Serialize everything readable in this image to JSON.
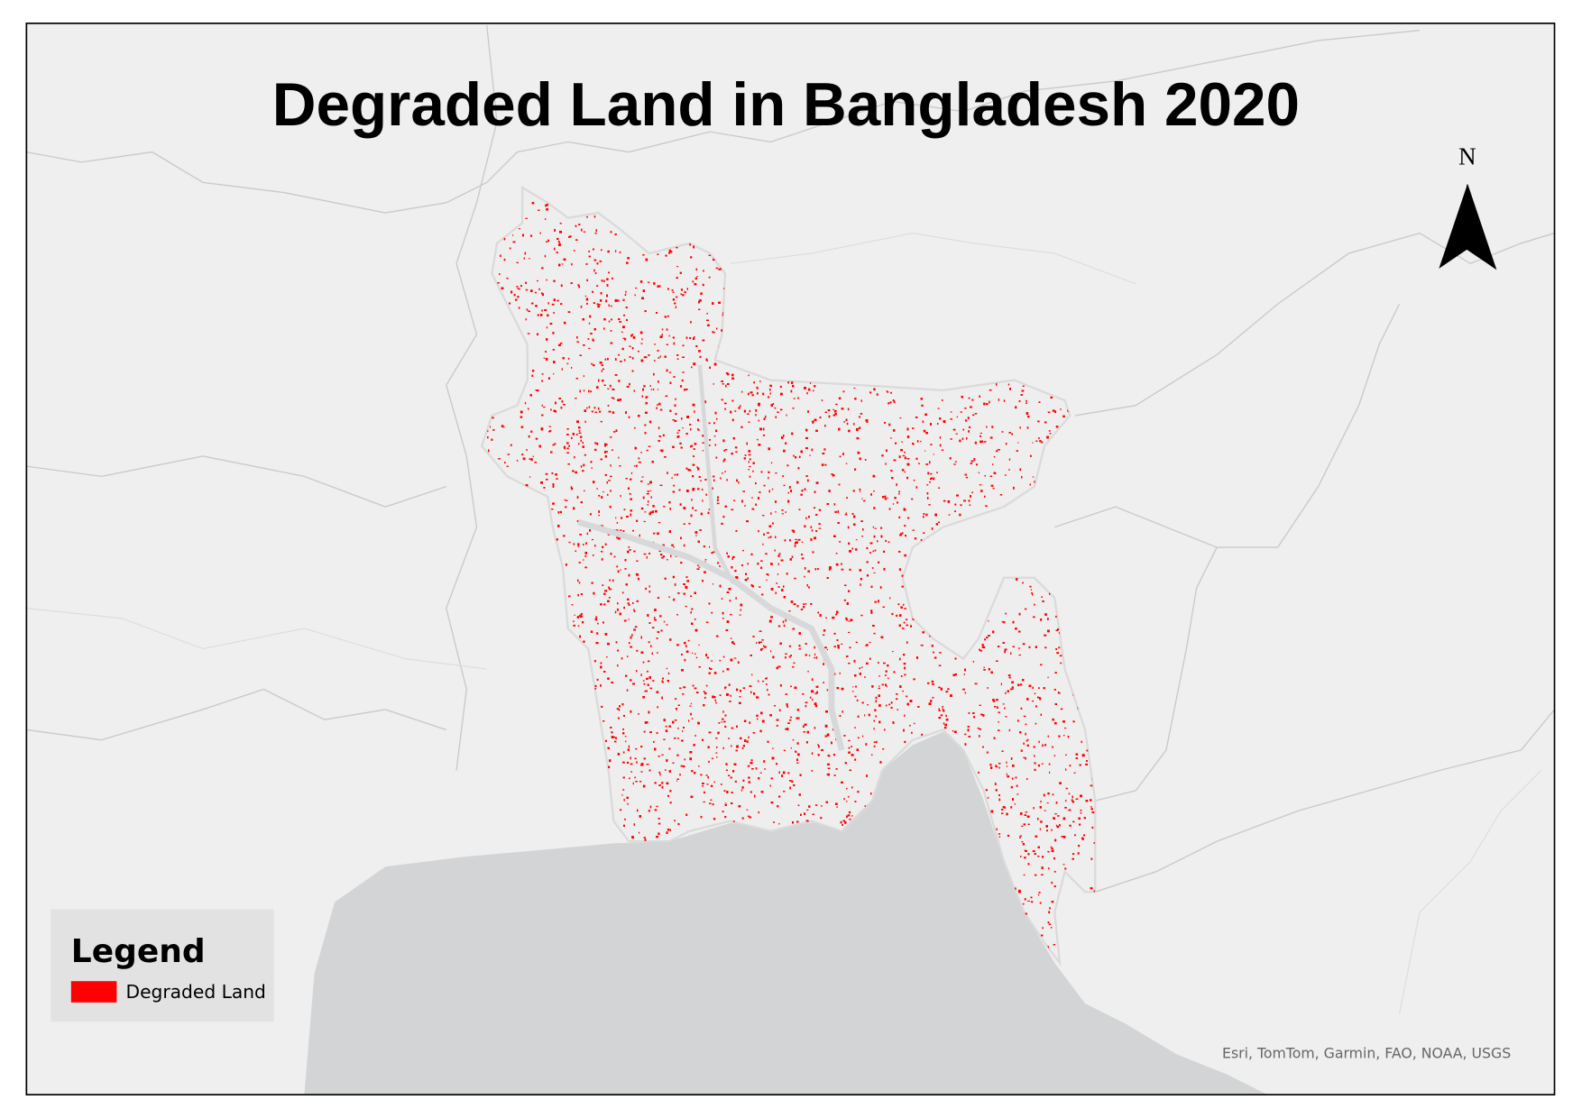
{
  "title": "Degraded Land in Bangladesh 2020",
  "north_arrow": "N",
  "legend": {
    "title": "Legend",
    "items": [
      {
        "label": "Degraded Land"
      }
    ]
  },
  "attribution": "Esri, TomTom, Garmin, FAO, NOAA, USGS"
}
